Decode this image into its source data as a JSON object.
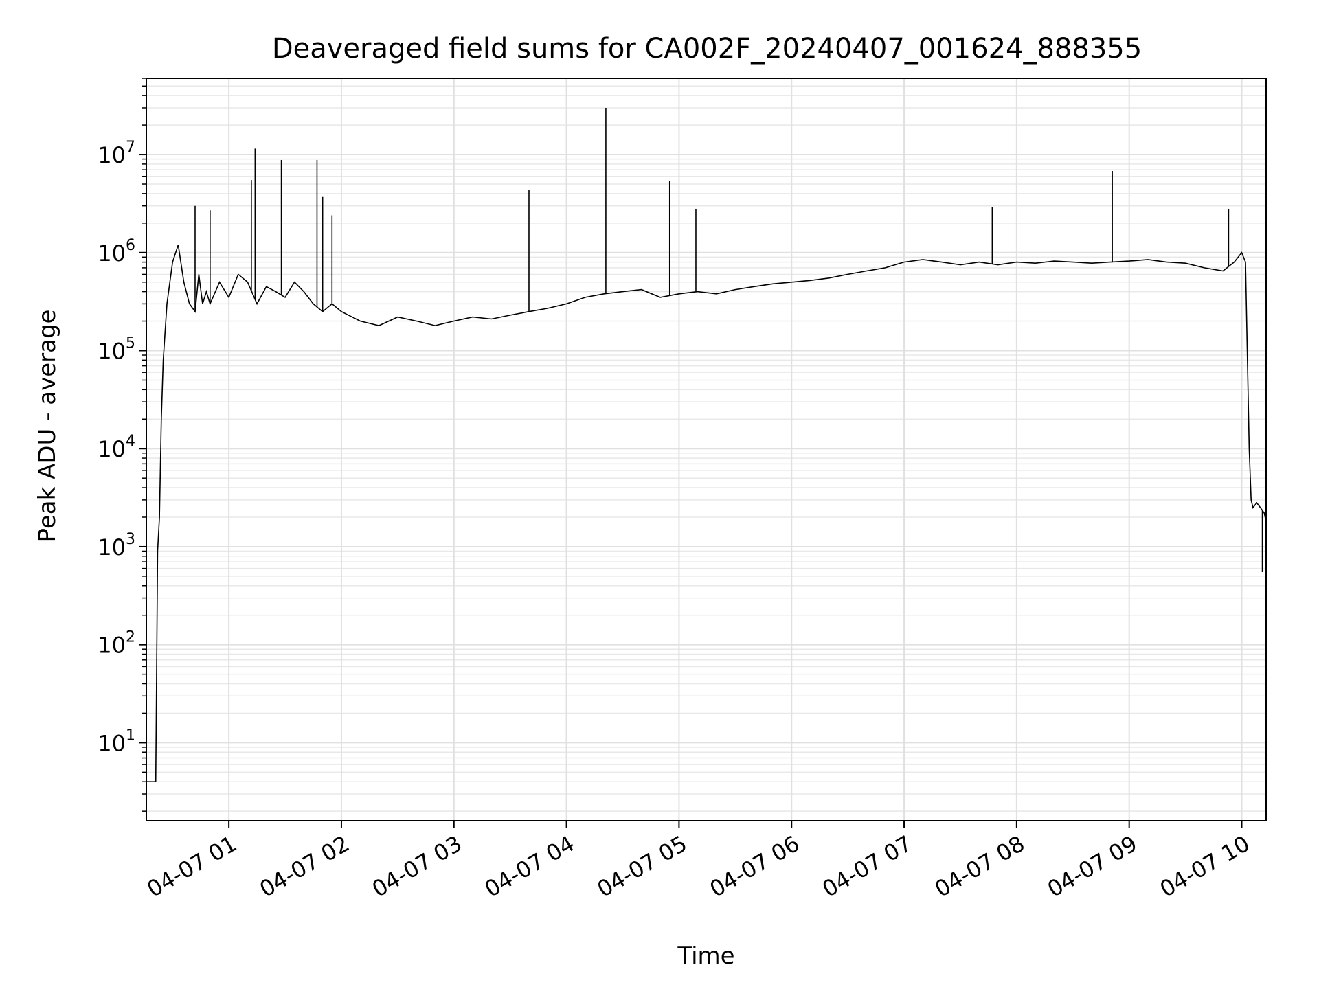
{
  "chart_data": {
    "type": "line",
    "title": "Deaveraged field sums for CA002F_20240407_001624_888355",
    "xlabel": "Time",
    "ylabel": "Peak ADU - average",
    "yscale": "log",
    "grid": true,
    "grid_minor": true,
    "line_color": "#000000",
    "xlim": [
      "2024-04-07 00:16",
      "2024-04-07 10:13"
    ],
    "ylim": [
      1.6,
      60000000
    ],
    "x_ticks": [
      {
        "value": "2024-04-07 01:00",
        "label": "04-07 01"
      },
      {
        "value": "2024-04-07 02:00",
        "label": "04-07 02"
      },
      {
        "value": "2024-04-07 03:00",
        "label": "04-07 03"
      },
      {
        "value": "2024-04-07 04:00",
        "label": "04-07 04"
      },
      {
        "value": "2024-04-07 05:00",
        "label": "04-07 05"
      },
      {
        "value": "2024-04-07 06:00",
        "label": "04-07 06"
      },
      {
        "value": "2024-04-07 07:00",
        "label": "04-07 07"
      },
      {
        "value": "2024-04-07 08:00",
        "label": "04-07 08"
      },
      {
        "value": "2024-04-07 09:00",
        "label": "04-07 09"
      },
      {
        "value": "2024-04-07 10:00",
        "label": "04-07 10"
      }
    ],
    "y_ticks": [
      {
        "value": 10,
        "base": "10",
        "exp": "1"
      },
      {
        "value": 100,
        "base": "10",
        "exp": "2"
      },
      {
        "value": 1000,
        "base": "10",
        "exp": "3"
      },
      {
        "value": 10000,
        "base": "10",
        "exp": "4"
      },
      {
        "value": 100000,
        "base": "10",
        "exp": "5"
      },
      {
        "value": 1000000,
        "base": "10",
        "exp": "6"
      },
      {
        "value": 10000000,
        "base": "10",
        "exp": "7"
      }
    ],
    "series": [
      {
        "x": [
          "2024-04-07 00:16",
          "2024-04-07 00:19",
          "2024-04-07 00:21",
          "2024-04-07 00:22",
          "2024-04-07 00:23",
          "2024-04-07 00:24",
          "2024-04-07 00:25",
          "2024-04-07 00:27",
          "2024-04-07 00:30",
          "2024-04-07 00:33",
          "2024-04-07 00:36",
          "2024-04-07 00:39",
          "2024-04-07 00:42",
          "2024-04-07 00:44",
          "2024-04-07 00:46",
          "2024-04-07 00:48",
          "2024-04-07 00:50",
          "2024-04-07 00:55",
          "2024-04-07 01:00",
          "2024-04-07 01:05",
          "2024-04-07 01:10",
          "2024-04-07 01:15",
          "2024-04-07 01:20",
          "2024-04-07 01:25",
          "2024-04-07 01:30",
          "2024-04-07 01:35",
          "2024-04-07 01:40",
          "2024-04-07 01:45",
          "2024-04-07 01:50",
          "2024-04-07 01:55",
          "2024-04-07 02:00",
          "2024-04-07 02:10",
          "2024-04-07 02:20",
          "2024-04-07 02:30",
          "2024-04-07 02:40",
          "2024-04-07 02:50",
          "2024-04-07 03:00",
          "2024-04-07 03:10",
          "2024-04-07 03:20",
          "2024-04-07 03:30",
          "2024-04-07 03:40",
          "2024-04-07 03:50",
          "2024-04-07 04:00",
          "2024-04-07 04:10",
          "2024-04-07 04:20",
          "2024-04-07 04:30",
          "2024-04-07 04:40",
          "2024-04-07 04:50",
          "2024-04-07 05:00",
          "2024-04-07 05:10",
          "2024-04-07 05:20",
          "2024-04-07 05:30",
          "2024-04-07 05:40",
          "2024-04-07 05:50",
          "2024-04-07 06:00",
          "2024-04-07 06:10",
          "2024-04-07 06:20",
          "2024-04-07 06:30",
          "2024-04-07 06:40",
          "2024-04-07 06:50",
          "2024-04-07 07:00",
          "2024-04-07 07:10",
          "2024-04-07 07:20",
          "2024-04-07 07:30",
          "2024-04-07 07:40",
          "2024-04-07 07:50",
          "2024-04-07 08:00",
          "2024-04-07 08:10",
          "2024-04-07 08:20",
          "2024-04-07 08:30",
          "2024-04-07 08:40",
          "2024-04-07 08:50",
          "2024-04-07 09:00",
          "2024-04-07 09:10",
          "2024-04-07 09:20",
          "2024-04-07 09:30",
          "2024-04-07 09:40",
          "2024-04-07 09:50",
          "2024-04-07 09:56",
          "2024-04-07 10:00",
          "2024-04-07 10:02",
          "2024-04-07 10:04",
          "2024-04-07 10:05",
          "2024-04-07 10:06",
          "2024-04-07 10:08",
          "2024-04-07 10:10",
          "2024-04-07 10:12",
          "2024-04-07 10:13"
        ],
        "y": [
          4,
          4,
          4,
          900,
          2000,
          20000,
          80000,
          300000,
          800000,
          1200000,
          500000,
          300000,
          250000,
          600000,
          300000,
          400000,
          300000,
          500000,
          350000,
          600000,
          500000,
          300000,
          450000,
          400000,
          350000,
          500000,
          400000,
          300000,
          250000,
          300000,
          250000,
          200000,
          180000,
          220000,
          200000,
          180000,
          200000,
          220000,
          210000,
          230000,
          250000,
          270000,
          300000,
          350000,
          380000,
          400000,
          420000,
          350000,
          380000,
          400000,
          380000,
          420000,
          450000,
          480000,
          500000,
          520000,
          550000,
          600000,
          650000,
          700000,
          800000,
          850000,
          800000,
          750000,
          800000,
          750000,
          800000,
          780000,
          820000,
          800000,
          780000,
          800000,
          820000,
          850000,
          800000,
          780000,
          700000,
          650000,
          800000,
          1000000,
          800000,
          10000,
          3000,
          2500,
          2800,
          2500,
          2200,
          1800
        ],
        "spikes": [
          {
            "x": "2024-04-07 00:42",
            "y": 3000000
          },
          {
            "x": "2024-04-07 00:50",
            "y": 2700000
          },
          {
            "x": "2024-04-07 01:12",
            "y": 5500000
          },
          {
            "x": "2024-04-07 01:14",
            "y": 11500000
          },
          {
            "x": "2024-04-07 01:28",
            "y": 8800000
          },
          {
            "x": "2024-04-07 01:47",
            "y": 8800000
          },
          {
            "x": "2024-04-07 01:50",
            "y": 3700000
          },
          {
            "x": "2024-04-07 01:55",
            "y": 2400000
          },
          {
            "x": "2024-04-07 03:40",
            "y": 4400000
          },
          {
            "x": "2024-04-07 04:21",
            "y": 30000000
          },
          {
            "x": "2024-04-07 04:55",
            "y": 5400000
          },
          {
            "x": "2024-04-07 05:09",
            "y": 2800000
          },
          {
            "x": "2024-04-07 07:47",
            "y": 2900000
          },
          {
            "x": "2024-04-07 08:51",
            "y": 6800000
          },
          {
            "x": "2024-04-07 09:53",
            "y": 2800000
          },
          {
            "x": "2024-04-07 10:11",
            "y": 550
          }
        ]
      }
    ]
  }
}
